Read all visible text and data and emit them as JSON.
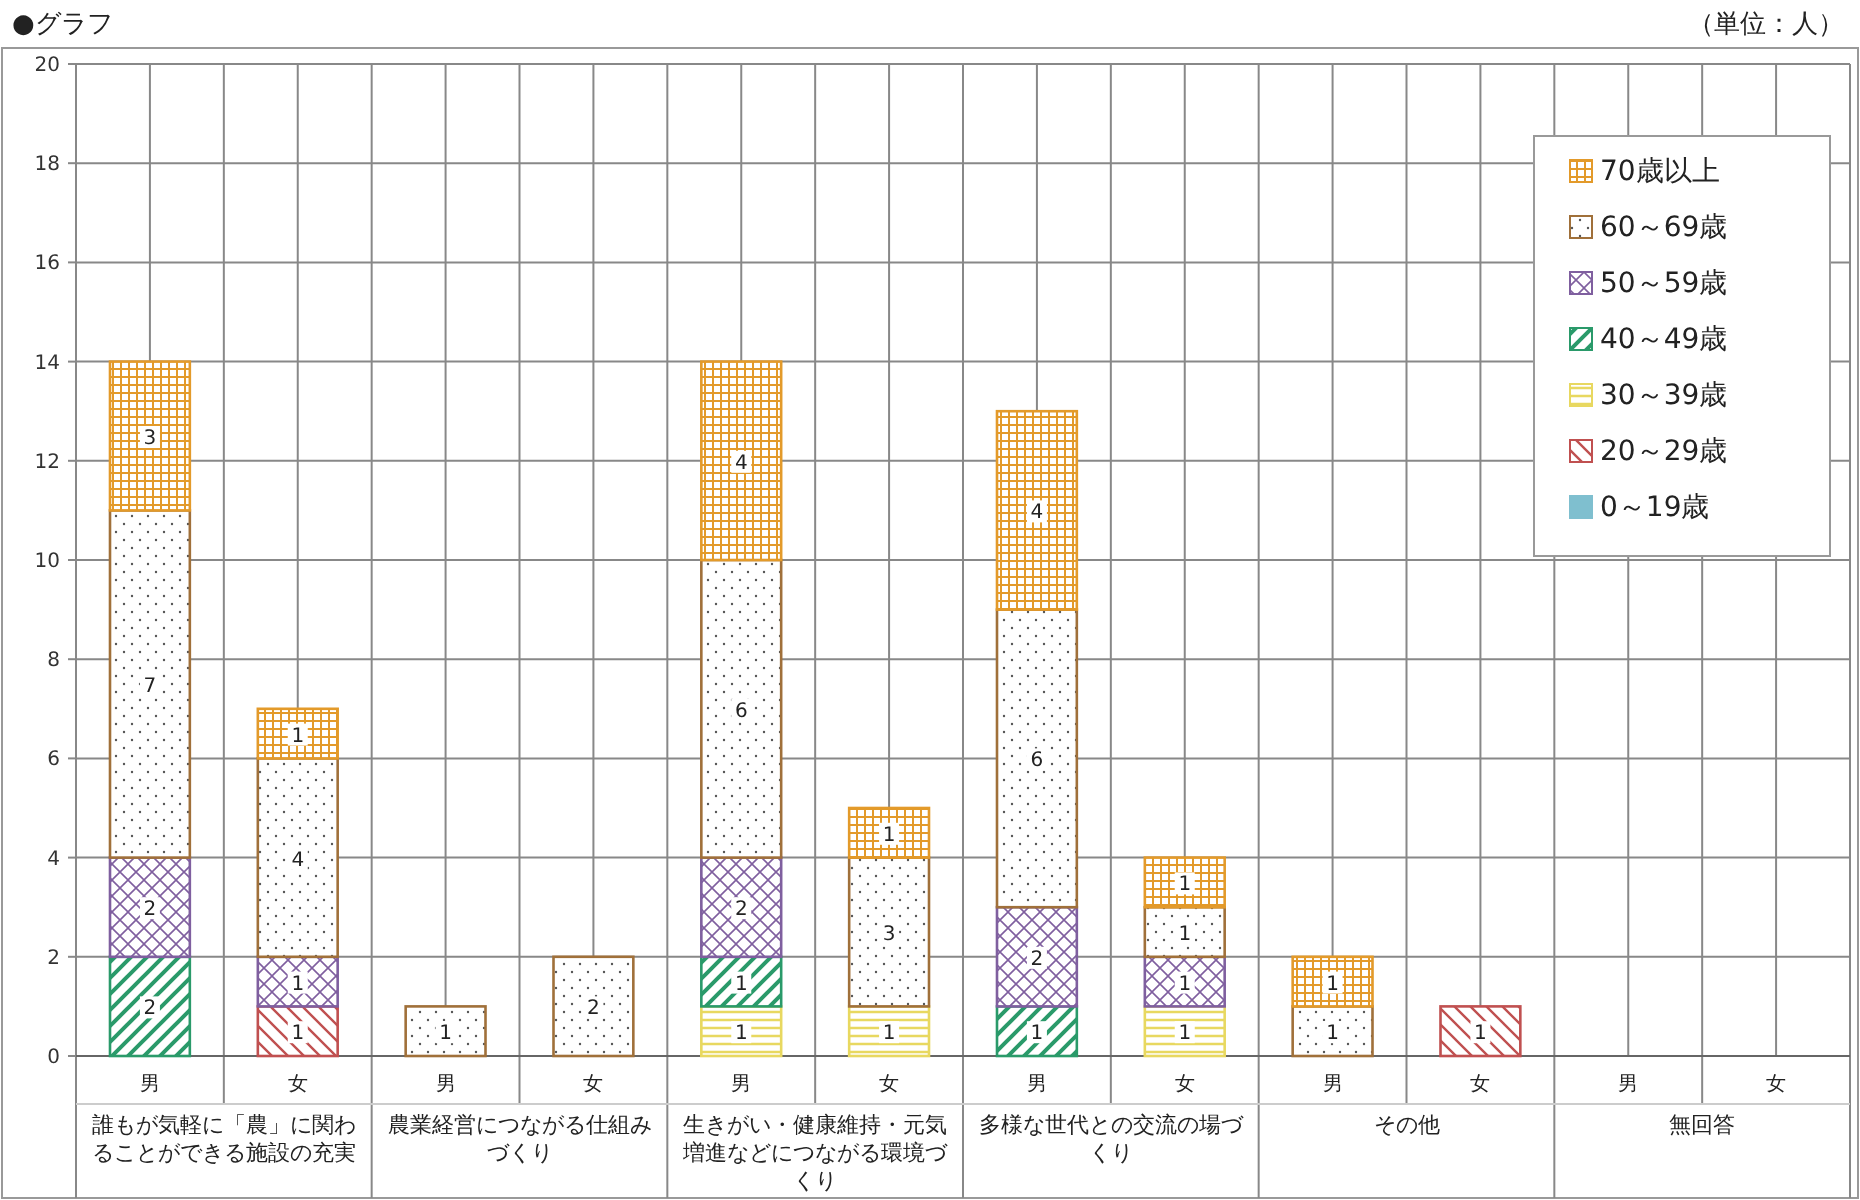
{
  "chart_data": {
    "type": "bar",
    "stacked": true,
    "title": "●グラフ",
    "subtitle": "（単位：人）",
    "categories": [
      "男",
      "女",
      "男",
      "女",
      "男",
      "女",
      "男",
      "女",
      "男",
      "女",
      "男",
      "女"
    ],
    "annotations": [
      "誰もが気軽に「農」に関わることができる施設の充実",
      "農業経営につながる仕組みづくり",
      "生きがい・健康維持・元気増進などにつながる環境づくり",
      "多様な世代との交流の場づくり",
      "その他",
      "無回答"
    ],
    "series": [
      {
        "name": "0～19歳",
        "color": "#7fbfcf",
        "values": [
          null,
          null,
          null,
          null,
          null,
          null,
          null,
          null,
          null,
          null,
          null,
          null
        ]
      },
      {
        "name": "20～29歳",
        "color": "#c05050",
        "values": [
          null,
          1,
          null,
          null,
          null,
          null,
          null,
          null,
          null,
          1,
          null,
          null
        ]
      },
      {
        "name": "30～39歳",
        "color": "#e8d860",
        "values": [
          null,
          null,
          null,
          null,
          1,
          1,
          null,
          1,
          null,
          null,
          null,
          null
        ]
      },
      {
        "name": "40～49歳",
        "color": "#2a9a6a",
        "values": [
          2,
          null,
          null,
          null,
          1,
          null,
          1,
          null,
          null,
          null,
          null,
          null
        ]
      },
      {
        "name": "50～59歳",
        "color": "#7f5f9f",
        "values": [
          2,
          1,
          null,
          null,
          2,
          null,
          2,
          1,
          null,
          null,
          null,
          null
        ]
      },
      {
        "name": "60～69歳",
        "color": "#a0703a",
        "values": [
          7,
          4,
          1,
          2,
          6,
          3,
          6,
          1,
          1,
          null,
          null,
          null
        ]
      },
      {
        "name": "70歳以上",
        "color": "#e39a2a",
        "values": [
          3,
          1,
          null,
          null,
          4,
          1,
          4,
          1,
          1,
          null,
          null,
          null
        ]
      }
    ],
    "ylim": [
      0,
      20
    ],
    "yticks": [
      0,
      2,
      4,
      6,
      8,
      10,
      12,
      14,
      16,
      18,
      20
    ],
    "grid": true,
    "legend": "top right",
    "data_labels": true
  }
}
